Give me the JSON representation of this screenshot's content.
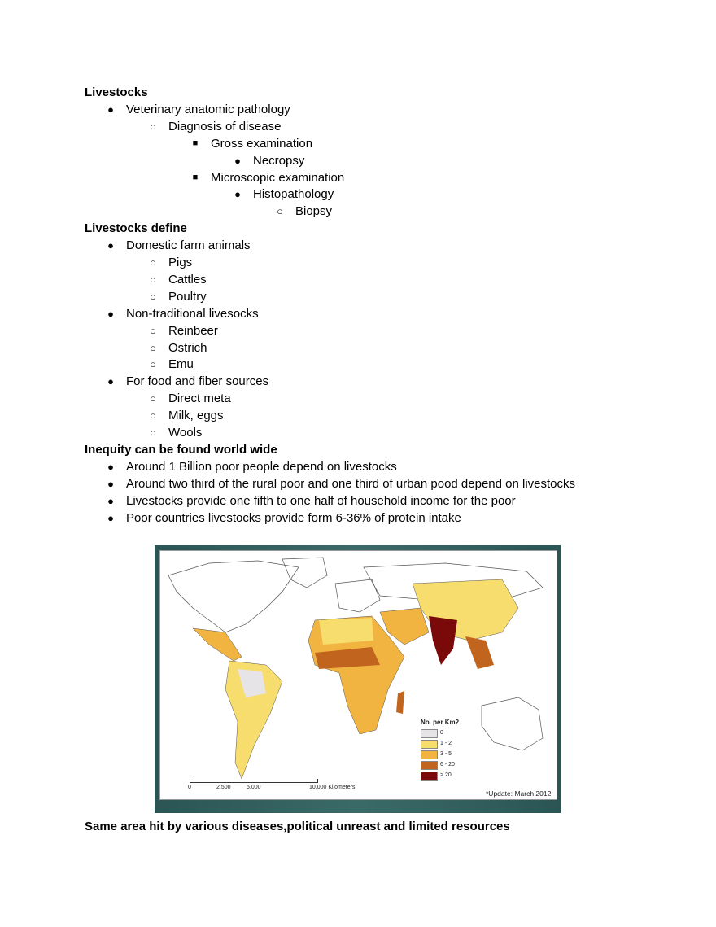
{
  "outline": [
    {
      "level": 0,
      "text": "Livestocks"
    },
    {
      "level": 1,
      "text": "Veterinary anatomic pathology"
    },
    {
      "level": 2,
      "text": "Diagnosis of disease"
    },
    {
      "level": 3,
      "text": "Gross examination"
    },
    {
      "level": 4,
      "text": "Necropsy"
    },
    {
      "level": 3,
      "text": "Microscopic examination"
    },
    {
      "level": 4,
      "text": "Histopathology"
    },
    {
      "level": 5,
      "text": "Biopsy"
    },
    {
      "level": 0,
      "text": "Livestocks define"
    },
    {
      "level": 1,
      "text": "Domestic farm animals"
    },
    {
      "level": 2,
      "text": "Pigs"
    },
    {
      "level": 2,
      "text": "Cattles"
    },
    {
      "level": 2,
      "text": "Poultry"
    },
    {
      "level": 1,
      "text": "Non-traditional livesocks"
    },
    {
      "level": 2,
      "text": "Reinbeer"
    },
    {
      "level": 2,
      "text": "Ostrich"
    },
    {
      "level": 2,
      "text": "Emu"
    },
    {
      "level": 1,
      "text": "For food and fiber sources"
    },
    {
      "level": 2,
      "text": "Direct meta"
    },
    {
      "level": 2,
      "text": "Milk, eggs"
    },
    {
      "level": 2,
      "text": "Wools"
    },
    {
      "level": 0,
      "text": "Inequity can be found world wide"
    },
    {
      "level": 1,
      "text": "Around 1 Billion poor people depend on livestocks"
    },
    {
      "level": 1,
      "text": "Around two third of the rural poor and one third of urban pood depend on livestocks"
    },
    {
      "level": 1,
      "text": "Livestocks provide one fifth to one half of household income for the poor"
    },
    {
      "level": 1,
      "text": "Poor countries livestocks provide form 6-36% of protein intake"
    }
  ],
  "map": {
    "legend_title": "No. per Km2",
    "legend": [
      {
        "label": "0",
        "color": "#e6e4e6"
      },
      {
        "label": "1 - 2",
        "color": "#f7dc6e"
      },
      {
        "label": "3 - 5",
        "color": "#f2b440"
      },
      {
        "label": "6 - 20",
        "color": "#c0641e"
      },
      {
        "label": "> 20",
        "color": "#7a0a0a"
      }
    ],
    "scale": [
      "0",
      "2,500",
      "5,000",
      "10,000 Kilometers"
    ],
    "update": "*Update: March 2012"
  },
  "footer": "Same area hit by various diseases,political unreast and limited resources"
}
